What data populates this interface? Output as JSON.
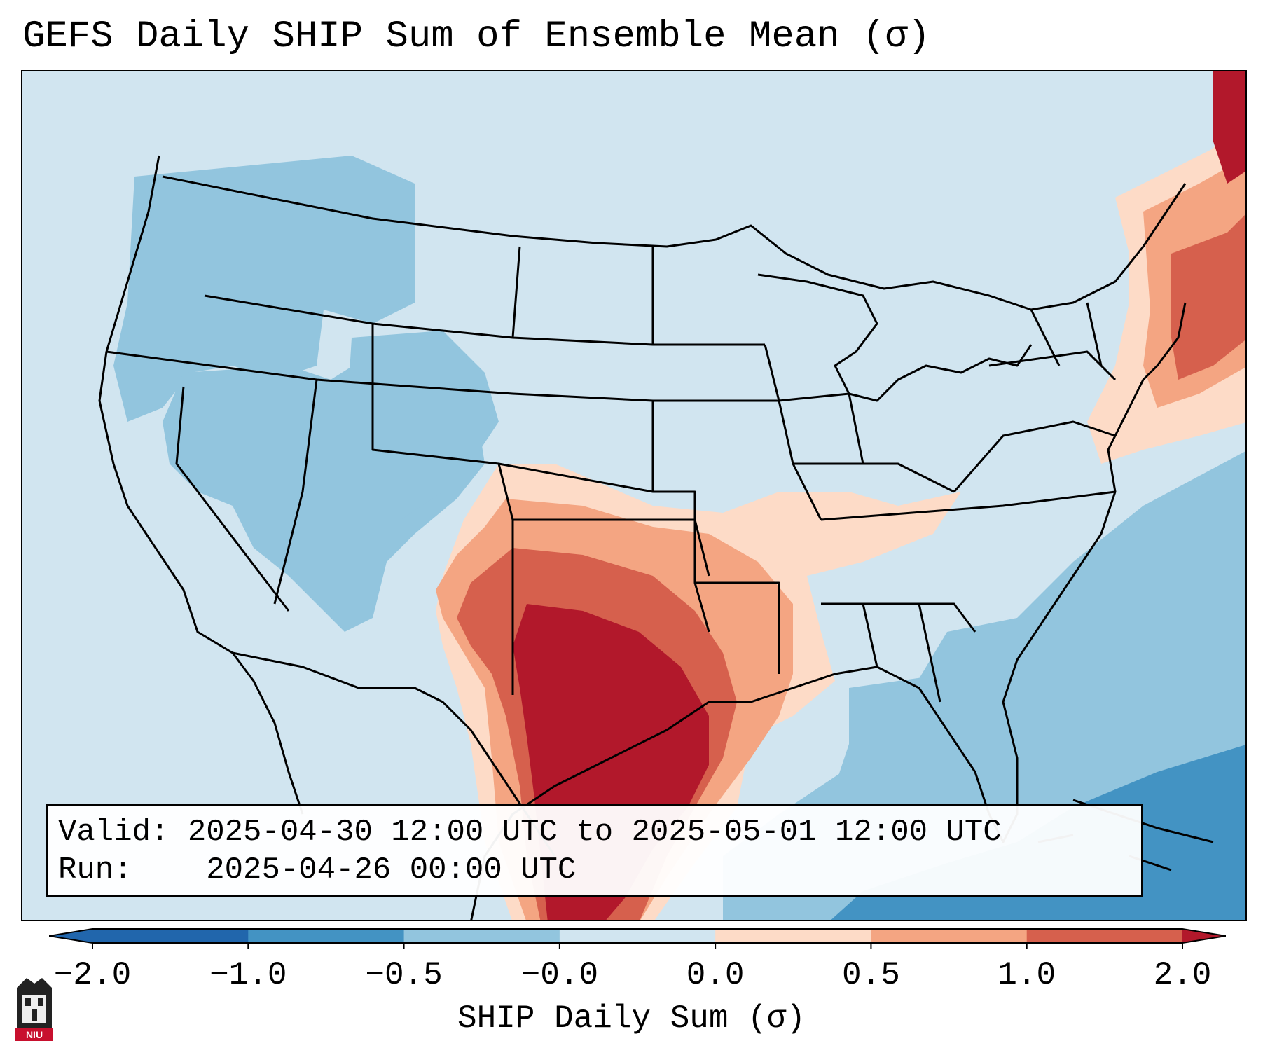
{
  "title": "GEFS Daily SHIP Sum of Ensemble Mean (σ)",
  "info": {
    "valid_label": "Valid:",
    "valid_value": "2025-04-30 12:00 UTC to 2025-05-01 12:00 UTC",
    "run_label": "Run:",
    "run_value": "2025-04-26 00:00 UTC"
  },
  "colorbar": {
    "label": "SHIP Daily Sum (σ)",
    "ticks": [
      "−2.0",
      "−1.0",
      "−0.5",
      "−0.0",
      "0.0",
      "0.5",
      "1.0",
      "2.0"
    ],
    "colors": [
      "#2166ac",
      "#4393c3",
      "#92c5de",
      "#d1e5f0",
      "#fddbc7",
      "#f4a582",
      "#d6604d",
      "#b2182b"
    ],
    "extend": "both"
  },
  "logo": {
    "name": "niu-logo",
    "text": "NIU"
  },
  "map": {
    "domain": "CONUS",
    "background_category": "−0.5 to 0.0",
    "features": [
      "coastlines",
      "state-borders",
      "country-borders",
      "great-lakes"
    ]
  }
}
